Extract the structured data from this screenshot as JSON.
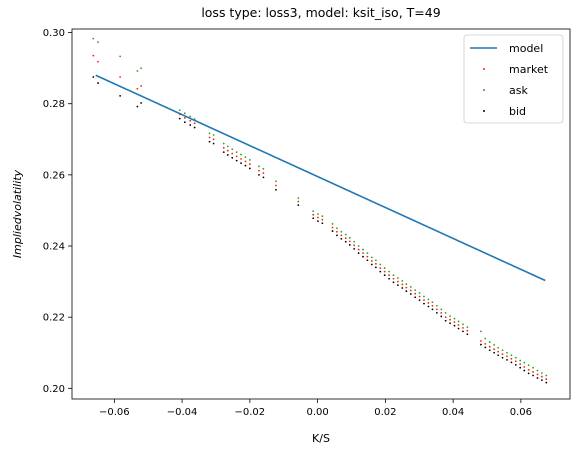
{
  "chart_data": {
    "type": "scatter",
    "title": "loss type: loss3, model: ksit_iso, T=49",
    "xlabel": "K/S",
    "ylabel": "Impliedvolatility",
    "xlim": [
      -0.0725,
      0.0745
    ],
    "ylim": [
      0.197,
      0.301
    ],
    "xticks": [
      -0.06,
      -0.04,
      -0.02,
      0.0,
      0.02,
      0.04,
      0.06
    ],
    "xtick_labels": [
      "−0.06",
      "−0.04",
      "−0.02",
      "0.00",
      "0.02",
      "0.04",
      "0.06"
    ],
    "yticks": [
      0.2,
      0.22,
      0.24,
      0.26,
      0.28,
      0.3
    ],
    "ytick_labels": [
      "0.20",
      "0.22",
      "0.24",
      "0.26",
      "0.28",
      "0.30"
    ],
    "grid": false,
    "legend_position": "top-right",
    "series": [
      {
        "name": "model",
        "kind": "line",
        "color": "#1f77b4",
        "x": [
          -0.0655,
          0.0672
        ],
        "y": [
          0.288,
          0.2303
        ]
      },
      {
        "name": "market",
        "kind": "scatter",
        "color": "#ff2200",
        "x": [
          -0.0662,
          -0.0648,
          -0.0583,
          -0.0532,
          -0.0521,
          -0.0407,
          -0.0392,
          -0.0376,
          -0.0363,
          -0.0319,
          -0.0307,
          -0.0277,
          -0.0265,
          -0.0252,
          -0.0239,
          -0.0226,
          -0.0213,
          -0.02,
          -0.0173,
          -0.016,
          -0.0123,
          -0.0057,
          -0.0013,
          0.0001,
          0.0014,
          0.0044,
          0.0057,
          0.007,
          0.0083,
          0.0095,
          0.0108,
          0.0121,
          0.0134,
          0.0147,
          0.016,
          0.0172,
          0.0185,
          0.0198,
          0.0211,
          0.0224,
          0.0237,
          0.025,
          0.0262,
          0.0275,
          0.0288,
          0.0301,
          0.0314,
          0.0327,
          0.0339,
          0.0352,
          0.0365,
          0.0378,
          0.0391,
          0.0404,
          0.0416,
          0.0429,
          0.0442,
          0.0482,
          0.0495,
          0.0508,
          0.0521,
          0.0533,
          0.0546,
          0.0559,
          0.0572,
          0.0585,
          0.0598,
          0.061,
          0.0623,
          0.0636,
          0.0649,
          0.0662,
          0.0675
        ],
        "y": [
          0.2935,
          0.2918,
          0.2875,
          0.2842,
          0.285,
          0.277,
          0.276,
          0.2752,
          0.2745,
          0.2705,
          0.27,
          0.2676,
          0.2668,
          0.266,
          0.2652,
          0.2645,
          0.2638,
          0.263,
          0.2612,
          0.2605,
          0.257,
          0.2525,
          0.2488,
          0.248,
          0.2474,
          0.2452,
          0.244,
          0.243,
          0.2422,
          0.2413,
          0.2402,
          0.239,
          0.238,
          0.237,
          0.2358,
          0.235,
          0.2338,
          0.2328,
          0.2318,
          0.2308,
          0.23,
          0.2292,
          0.2283,
          0.2275,
          0.2266,
          0.2258,
          0.2248,
          0.224,
          0.2232,
          0.2222,
          0.2212,
          0.22,
          0.2193,
          0.2186,
          0.2178,
          0.217,
          0.2162,
          0.2133,
          0.2125,
          0.2117,
          0.211,
          0.2103,
          0.2096,
          0.209,
          0.2083,
          0.2076,
          0.2068,
          0.206,
          0.2052,
          0.2046,
          0.2039,
          0.2033,
          0.2026
        ]
      },
      {
        "name": "ask",
        "kind": "scatter",
        "color": "#2ca02c",
        "x": [
          -0.0662,
          -0.0648,
          -0.0583,
          -0.0532,
          -0.0521,
          -0.0407,
          -0.0392,
          -0.0376,
          -0.0363,
          -0.0319,
          -0.0307,
          -0.0277,
          -0.0265,
          -0.0252,
          -0.0239,
          -0.0226,
          -0.0213,
          -0.02,
          -0.0173,
          -0.016,
          -0.0123,
          -0.0057,
          -0.0013,
          0.0001,
          0.0014,
          0.0044,
          0.0057,
          0.007,
          0.0083,
          0.0095,
          0.0108,
          0.0121,
          0.0134,
          0.0147,
          0.016,
          0.0172,
          0.0185,
          0.0198,
          0.0211,
          0.0224,
          0.0237,
          0.025,
          0.0262,
          0.0275,
          0.0288,
          0.0301,
          0.0314,
          0.0327,
          0.0339,
          0.0352,
          0.0365,
          0.0378,
          0.0391,
          0.0404,
          0.0416,
          0.0429,
          0.0442,
          0.0482,
          0.0495,
          0.0508,
          0.0521,
          0.0533,
          0.0546,
          0.0559,
          0.0572,
          0.0585,
          0.0598,
          0.061,
          0.0623,
          0.0636,
          0.0649,
          0.0662,
          0.0675
        ],
        "y": [
          0.2983,
          0.2973,
          0.2933,
          0.2892,
          0.29,
          0.2782,
          0.2773,
          0.2764,
          0.2757,
          0.2717,
          0.2712,
          0.2688,
          0.268,
          0.2672,
          0.2664,
          0.2657,
          0.265,
          0.2642,
          0.2624,
          0.2617,
          0.2582,
          0.2535,
          0.2498,
          0.249,
          0.2484,
          0.2462,
          0.245,
          0.244,
          0.2432,
          0.2423,
          0.2412,
          0.24,
          0.239,
          0.238,
          0.2368,
          0.236,
          0.2348,
          0.2338,
          0.2328,
          0.2318,
          0.231,
          0.2302,
          0.2293,
          0.2285,
          0.2276,
          0.2268,
          0.2258,
          0.225,
          0.2242,
          0.2232,
          0.2222,
          0.2212,
          0.2203,
          0.2196,
          0.2188,
          0.218,
          0.2172,
          0.216,
          0.214,
          0.213,
          0.2122,
          0.2114,
          0.2107,
          0.21,
          0.2093,
          0.2086,
          0.2078,
          0.2072,
          0.2065,
          0.2058,
          0.205,
          0.2043,
          0.2036
        ]
      },
      {
        "name": "bid",
        "kind": "scatter",
        "color": "#000000",
        "x": [
          -0.0662,
          -0.0648,
          -0.0583,
          -0.0532,
          -0.0521,
          -0.0407,
          -0.0392,
          -0.0376,
          -0.0363,
          -0.0319,
          -0.0307,
          -0.0277,
          -0.0265,
          -0.0252,
          -0.0239,
          -0.0226,
          -0.0213,
          -0.02,
          -0.0173,
          -0.016,
          -0.0123,
          -0.0057,
          -0.0013,
          0.0001,
          0.0014,
          0.0044,
          0.0057,
          0.007,
          0.0083,
          0.0095,
          0.0108,
          0.0121,
          0.0134,
          0.0147,
          0.016,
          0.0172,
          0.0185,
          0.0198,
          0.0211,
          0.0224,
          0.0237,
          0.025,
          0.0262,
          0.0275,
          0.0288,
          0.0301,
          0.0314,
          0.0327,
          0.0339,
          0.0352,
          0.0365,
          0.0378,
          0.0391,
          0.0404,
          0.0416,
          0.0429,
          0.0442,
          0.0482,
          0.0495,
          0.0508,
          0.0521,
          0.0533,
          0.0546,
          0.0559,
          0.0572,
          0.0585,
          0.0598,
          0.061,
          0.0623,
          0.0636,
          0.0649,
          0.0662,
          0.0675
        ],
        "y": [
          0.2875,
          0.2858,
          0.2822,
          0.2792,
          0.2802,
          0.2758,
          0.2748,
          0.274,
          0.2733,
          0.2693,
          0.2688,
          0.2664,
          0.2656,
          0.2648,
          0.264,
          0.2633,
          0.2626,
          0.2618,
          0.26,
          0.2593,
          0.2558,
          0.2515,
          0.2478,
          0.247,
          0.2464,
          0.2442,
          0.243,
          0.242,
          0.2412,
          0.2403,
          0.2392,
          0.238,
          0.237,
          0.236,
          0.2348,
          0.234,
          0.2328,
          0.2318,
          0.2308,
          0.2298,
          0.229,
          0.2282,
          0.2273,
          0.2265,
          0.2256,
          0.2248,
          0.2238,
          0.223,
          0.2222,
          0.2212,
          0.2202,
          0.219,
          0.2183,
          0.2176,
          0.2168,
          0.216,
          0.2152,
          0.2123,
          0.2115,
          0.2107,
          0.21,
          0.2093,
          0.2086,
          0.208,
          0.2073,
          0.2066,
          0.2058,
          0.205,
          0.2042,
          0.2036,
          0.2029,
          0.2023,
          0.2016
        ]
      }
    ]
  }
}
